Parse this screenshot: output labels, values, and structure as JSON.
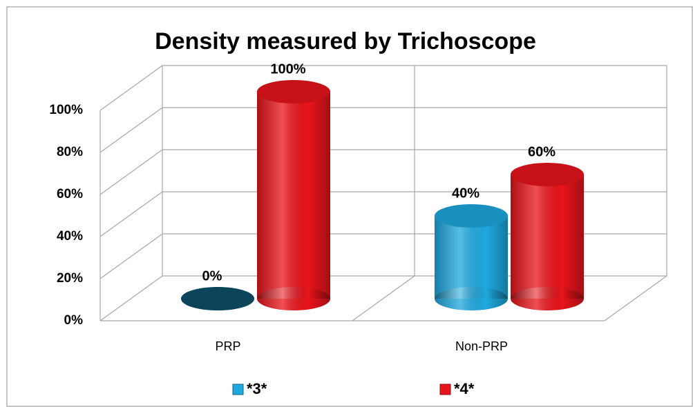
{
  "chart_data": {
    "type": "bar3d",
    "title": "Density measured by Trichoscope",
    "categories": [
      "PRP",
      "Non-PRP"
    ],
    "series": [
      {
        "name": "*3*",
        "color": "#1fa9df",
        "values": [
          0,
          40
        ],
        "value_labels": [
          "0%",
          "40%"
        ]
      },
      {
        "name": "*4*",
        "color": "#e8141b",
        "values": [
          100,
          60
        ],
        "value_labels": [
          "100%",
          "60%"
        ]
      }
    ],
    "ylim": [
      0,
      100
    ],
    "yticks": [
      {
        "value": 0,
        "label": "0%"
      },
      {
        "value": 20,
        "label": "20%"
      },
      {
        "value": 40,
        "label": "40%"
      },
      {
        "value": 60,
        "label": "60%"
      },
      {
        "value": 80,
        "label": "80%"
      },
      {
        "value": 100,
        "label": "100%"
      }
    ],
    "grid": true,
    "legend": "bottom"
  }
}
